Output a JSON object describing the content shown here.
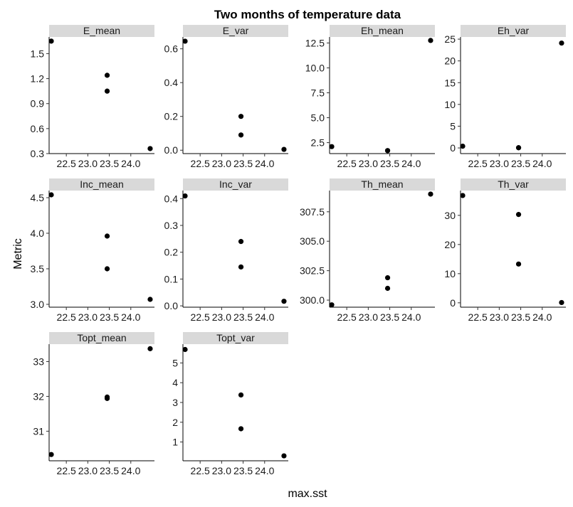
{
  "chart_data": {
    "type": "scatter",
    "title": "Two months of temperature data",
    "xlabel": "max.sst",
    "ylabel": "Metric",
    "layout": "facet grid, 4 columns x 3 rows, free y scales",
    "point_color": "#000000",
    "strip_color": "#d9d9d9",
    "xlim": [
      22.1,
      24.55
    ],
    "xticks": [
      22.5,
      23.0,
      23.5,
      24.0
    ],
    "xtick_labels": [
      "22.5",
      "23.0",
      "23.5",
      "24.0"
    ],
    "panels": [
      {
        "name": "E_mean",
        "strip": "E_mean",
        "ylim": [
          0.3,
          1.7
        ],
        "yticks": [
          0.3,
          0.6,
          0.9,
          1.2,
          1.5
        ],
        "ytick_labels": [
          "0.3",
          "0.6",
          "0.9",
          "1.2",
          "1.5"
        ],
        "x": [
          22.15,
          23.45,
          23.45,
          24.45
        ],
        "y": [
          1.65,
          1.24,
          1.05,
          0.36
        ]
      },
      {
        "name": "E_var",
        "strip": "E_var",
        "ylim": [
          -0.02,
          0.67
        ],
        "yticks": [
          0.0,
          0.2,
          0.4,
          0.6
        ],
        "ytick_labels": [
          "0.0",
          "0.2",
          "0.4",
          "0.6"
        ],
        "x": [
          22.15,
          23.45,
          23.45,
          24.45
        ],
        "y": [
          0.645,
          0.2,
          0.09,
          0.005
        ]
      },
      {
        "name": "Eh_mean",
        "strip": "Eh_mean",
        "ylim": [
          1.4,
          13.1
        ],
        "yticks": [
          2.5,
          5.0,
          7.5,
          10.0,
          12.5
        ],
        "ytick_labels": [
          "2.5",
          "5.0",
          "7.5",
          "10.0",
          "12.5"
        ],
        "x": [
          22.15,
          23.45,
          23.45,
          24.45
        ],
        "y": [
          2.1,
          1.7,
          1.7,
          12.75
        ]
      },
      {
        "name": "Eh_var",
        "strip": "Eh_var",
        "ylim": [
          -1.3,
          25.5
        ],
        "yticks": [
          0,
          5,
          10,
          15,
          20,
          25
        ],
        "ytick_labels": [
          "0",
          "5",
          "10",
          "15",
          "20",
          "25"
        ],
        "x": [
          22.15,
          23.45,
          23.45,
          24.45
        ],
        "y": [
          0.4,
          0.05,
          0.05,
          24.1
        ]
      },
      {
        "name": "Inc_mean",
        "strip": "Inc_mean",
        "ylim": [
          2.96,
          4.6
        ],
        "yticks": [
          3.0,
          3.5,
          4.0,
          4.5
        ],
        "ytick_labels": [
          "3.0",
          "3.5",
          "4.0",
          "4.5"
        ],
        "x": [
          22.15,
          23.45,
          23.45,
          24.45
        ],
        "y": [
          4.54,
          3.96,
          3.5,
          3.07
        ]
      },
      {
        "name": "Inc_var",
        "strip": "Inc_var",
        "ylim": [
          -0.005,
          0.43
        ],
        "yticks": [
          0.0,
          0.1,
          0.2,
          0.3,
          0.4
        ],
        "ytick_labels": [
          "0.0",
          "0.1",
          "0.2",
          "0.3",
          "0.4"
        ],
        "x": [
          22.15,
          23.45,
          23.45,
          24.45
        ],
        "y": [
          0.41,
          0.24,
          0.145,
          0.017
        ]
      },
      {
        "name": "Th_mean",
        "strip": "Th_mean",
        "ylim": [
          299.4,
          309.3
        ],
        "yticks": [
          300.0,
          302.5,
          305.0,
          307.5
        ],
        "ytick_labels": [
          "300.0",
          "302.5",
          "305.0",
          "307.5"
        ],
        "x": [
          22.15,
          23.45,
          23.45,
          24.45
        ],
        "y": [
          299.6,
          301.9,
          301.0,
          309.0
        ]
      },
      {
        "name": "Th_var",
        "strip": "Th_var",
        "ylim": [
          -1.5,
          38.5
        ],
        "yticks": [
          0,
          10,
          20,
          30
        ],
        "ytick_labels": [
          "0",
          "10",
          "20",
          "30"
        ],
        "x": [
          22.15,
          23.45,
          23.45,
          24.45
        ],
        "y": [
          36.8,
          30.3,
          13.3,
          0.1
        ]
      },
      {
        "name": "Topt_mean",
        "strip": "Topt_mean",
        "ylim": [
          30.15,
          33.5
        ],
        "yticks": [
          31,
          32,
          33
        ],
        "ytick_labels": [
          "31",
          "32",
          "33"
        ],
        "x": [
          22.15,
          23.45,
          23.45,
          24.45
        ],
        "y": [
          30.33,
          31.98,
          31.94,
          33.37
        ]
      },
      {
        "name": "Topt_var",
        "strip": "Topt_var",
        "ylim": [
          0.05,
          5.95
        ],
        "yticks": [
          1,
          2,
          3,
          4,
          5
        ],
        "ytick_labels": [
          "1",
          "2",
          "3",
          "4",
          "5"
        ],
        "x": [
          22.15,
          23.45,
          23.45,
          24.45
        ],
        "y": [
          5.68,
          3.38,
          1.67,
          0.3
        ]
      }
    ]
  }
}
